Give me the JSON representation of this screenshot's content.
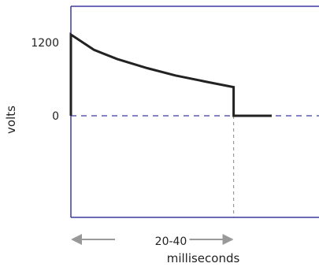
{
  "chart_data": {
    "type": "line",
    "title": "",
    "xlabel": "milliseconds",
    "ylabel": "volts",
    "ylim": [
      -1700,
      1800
    ],
    "xlim": [
      0,
      1
    ],
    "yticks": [
      {
        "value": 1200,
        "label": "1200"
      },
      {
        "value": 0,
        "label": "0"
      }
    ],
    "series": [
      {
        "values": [
          {
            "x": 0.0,
            "y": 0
          },
          {
            "x": 0.0,
            "y": 1330
          },
          {
            "x": 0.115,
            "y": 1080
          },
          {
            "x": 0.23,
            "y": 930
          },
          {
            "x": 0.38,
            "y": 780
          },
          {
            "x": 0.52,
            "y": 660
          },
          {
            "x": 0.67,
            "y": 560
          },
          {
            "x": 0.81,
            "y": 470
          },
          {
            "x": 0.81,
            "y": 0
          },
          {
            "x": 1.0,
            "y": 0
          }
        ]
      }
    ],
    "reference_lines": [
      {
        "orientation": "horizontal",
        "value": 0,
        "style": "dashed",
        "color": "#3a3aa0"
      },
      {
        "orientation": "vertical",
        "value": 0.81,
        "style": "dashed",
        "color": "#999999"
      }
    ],
    "annotation": {
      "duration_label": "20-40",
      "start": 0.0,
      "end": 0.81
    },
    "grid": false,
    "legend": "none",
    "colors": {
      "axis": "#3a3aa0",
      "line": "#222222",
      "arrow": "#999999"
    }
  }
}
